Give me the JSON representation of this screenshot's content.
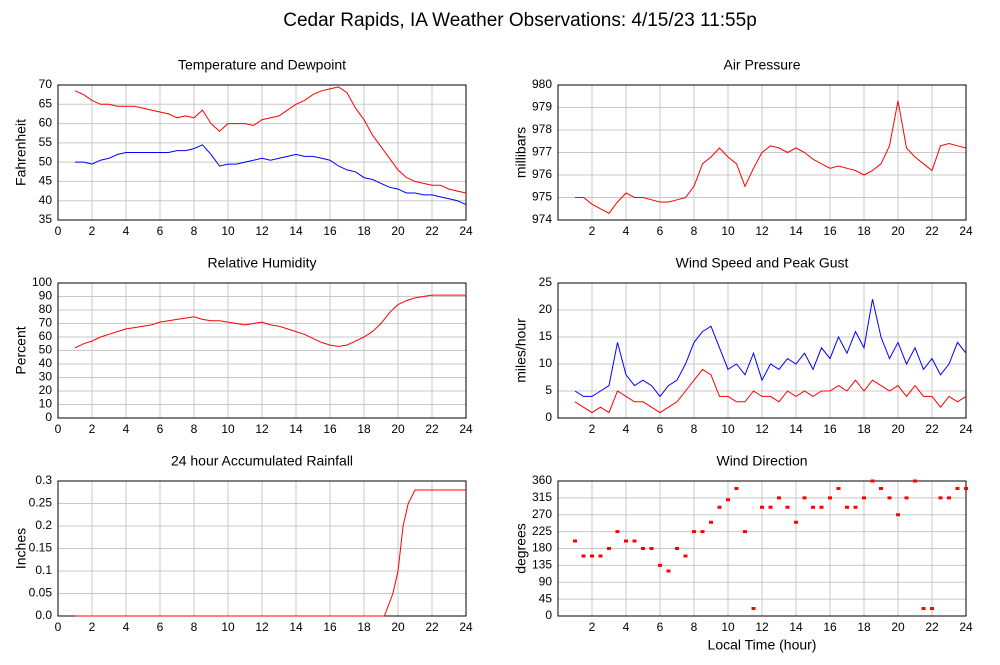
{
  "title": "Cedar Rapids, IA Weather Observations: 4/15/23 11:55p",
  "chart_data": [
    {
      "type": "line",
      "title": "Temperature and Dewpoint",
      "ylabel": "Fahrenheit",
      "xlim": [
        0,
        24
      ],
      "xticks": [
        0,
        2,
        4,
        6,
        8,
        10,
        12,
        14,
        16,
        18,
        20,
        22,
        24
      ],
      "ylim": [
        35,
        70
      ],
      "yticks": [
        35,
        40,
        45,
        50,
        55,
        60,
        65,
        70
      ],
      "grid": true,
      "x": [
        1,
        1.5,
        2,
        2.5,
        3,
        3.5,
        4,
        4.5,
        5,
        5.5,
        6,
        6.5,
        7,
        7.5,
        8,
        8.5,
        9,
        9.5,
        10,
        10.5,
        11,
        11.5,
        12,
        12.5,
        13,
        13.5,
        14,
        14.5,
        15,
        15.5,
        16,
        16.5,
        17,
        17.5,
        18,
        18.5,
        19,
        19.5,
        20,
        20.5,
        21,
        21.5,
        22,
        22.5,
        23,
        23.5,
        24
      ],
      "series": [
        {
          "color": "#ff0000",
          "values": [
            68.5,
            67.5,
            66,
            65,
            65,
            64.5,
            64.5,
            64.5,
            64,
            63.5,
            63,
            62.5,
            61.5,
            62,
            61.5,
            63.5,
            60,
            58,
            60,
            60,
            60,
            59.5,
            61,
            61.5,
            62,
            63.5,
            65,
            66,
            67.5,
            68.5,
            69,
            69.5,
            68,
            64,
            61,
            57,
            54,
            51,
            48,
            46,
            45,
            44.5,
            44,
            44,
            43,
            42.5,
            42
          ]
        },
        {
          "color": "#0000ff",
          "values": [
            50,
            50,
            49.5,
            50.5,
            51,
            52,
            52.5,
            52.5,
            52.5,
            52.5,
            52.5,
            52.5,
            53,
            53,
            53.5,
            54.5,
            52,
            49,
            49.5,
            49.5,
            50,
            50.5,
            51,
            50.5,
            51,
            51.5,
            52,
            51.5,
            51.5,
            51,
            50.5,
            49,
            48,
            47.5,
            46,
            45.5,
            44.5,
            43.5,
            43,
            42,
            42,
            41.5,
            41.5,
            41,
            40.5,
            40,
            39
          ]
        }
      ]
    },
    {
      "type": "line",
      "title": "Air Pressure",
      "ylabel": "millibars",
      "xlim": [
        0,
        24
      ],
      "xticks": [
        2,
        4,
        6,
        8,
        10,
        12,
        14,
        16,
        18,
        20,
        22,
        24
      ],
      "ylim": [
        974,
        980
      ],
      "yticks": [
        974,
        975,
        976,
        977,
        978,
        979,
        980
      ],
      "grid": true,
      "x": [
        1,
        1.5,
        2,
        2.5,
        3,
        3.5,
        4,
        4.5,
        5,
        5.5,
        6,
        6.5,
        7,
        7.5,
        8,
        8.5,
        9,
        9.5,
        10,
        10.5,
        11,
        11.5,
        12,
        12.5,
        13,
        13.5,
        14,
        14.5,
        15,
        15.5,
        16,
        16.5,
        17,
        17.5,
        18,
        18.5,
        19,
        19.5,
        20,
        20.5,
        21,
        21.5,
        22,
        22.5,
        23,
        23.5,
        24
      ],
      "series": [
        {
          "color": "#ff0000",
          "values": [
            975,
            975,
            974.7,
            974.5,
            974.3,
            974.8,
            975.2,
            975,
            975,
            974.9,
            974.8,
            974.8,
            974.9,
            975,
            975.5,
            976.5,
            976.8,
            977.2,
            976.8,
            976.5,
            975.5,
            976.3,
            977,
            977.3,
            977.2,
            977,
            977.2,
            977,
            976.7,
            976.5,
            976.3,
            976.4,
            976.3,
            976.2,
            976,
            976.2,
            976.5,
            977.3,
            979.3,
            977.2,
            976.8,
            976.5,
            976.2,
            977.3,
            977.4,
            977.3,
            977.2
          ]
        }
      ]
    },
    {
      "type": "line",
      "title": "Relative Humidity",
      "ylabel": "Percent",
      "xlim": [
        0,
        24
      ],
      "xticks": [
        0,
        2,
        4,
        6,
        8,
        10,
        12,
        14,
        16,
        18,
        20,
        22,
        24
      ],
      "ylim": [
        0,
        100
      ],
      "yticks": [
        0,
        10,
        20,
        30,
        40,
        50,
        60,
        70,
        80,
        90,
        100
      ],
      "grid": true,
      "x": [
        1,
        1.5,
        2,
        2.5,
        3,
        3.5,
        4,
        4.5,
        5,
        5.5,
        6,
        6.5,
        7,
        7.5,
        8,
        8.5,
        9,
        9.5,
        10,
        10.5,
        11,
        11.5,
        12,
        12.5,
        13,
        13.5,
        14,
        14.5,
        15,
        15.5,
        16,
        16.5,
        17,
        17.5,
        18,
        18.5,
        19,
        19.5,
        20,
        20.5,
        21,
        21.5,
        22,
        22.5,
        23,
        23.5,
        24
      ],
      "series": [
        {
          "color": "#ff0000",
          "values": [
            52,
            55,
            57,
            60,
            62,
            64,
            66,
            67,
            68,
            69,
            71,
            72,
            73,
            74,
            75,
            73,
            72,
            72,
            71,
            70,
            69,
            70,
            71,
            69,
            68,
            66,
            64,
            62,
            59,
            56,
            54,
            53,
            54,
            57,
            60,
            64,
            70,
            78,
            84,
            87,
            89,
            90,
            91,
            91,
            91,
            91,
            91
          ]
        }
      ]
    },
    {
      "type": "line",
      "title": "Wind Speed and Peak Gust",
      "ylabel": "miles/hour",
      "xlim": [
        0,
        24
      ],
      "xticks": [
        2,
        4,
        6,
        8,
        10,
        12,
        14,
        16,
        18,
        20,
        22,
        24
      ],
      "ylim": [
        0,
        25
      ],
      "yticks": [
        0,
        5,
        10,
        15,
        20,
        25
      ],
      "grid": true,
      "x": [
        1,
        1.5,
        2,
        2.5,
        3,
        3.5,
        4,
        4.5,
        5,
        5.5,
        6,
        6.5,
        7,
        7.5,
        8,
        8.5,
        9,
        9.5,
        10,
        10.5,
        11,
        11.5,
        12,
        12.5,
        13,
        13.5,
        14,
        14.5,
        15,
        15.5,
        16,
        16.5,
        17,
        17.5,
        18,
        18.5,
        19,
        19.5,
        20,
        20.5,
        21,
        21.5,
        22,
        22.5,
        23,
        23.5,
        24
      ],
      "series": [
        {
          "color": "#0000ff",
          "values": [
            5,
            4,
            4,
            5,
            6,
            14,
            8,
            6,
            7,
            6,
            4,
            6,
            7,
            10,
            14,
            16,
            17,
            13,
            9,
            10,
            8,
            12,
            7,
            10,
            9,
            11,
            10,
            12,
            9,
            13,
            11,
            15,
            12,
            16,
            13,
            22,
            15,
            11,
            14,
            10,
            13,
            9,
            11,
            8,
            10,
            14,
            12
          ]
        },
        {
          "color": "#ff0000",
          "values": [
            3,
            2,
            1,
            2,
            1,
            5,
            4,
            3,
            3,
            2,
            1,
            2,
            3,
            5,
            7,
            9,
            8,
            4,
            4,
            3,
            3,
            5,
            4,
            4,
            3,
            5,
            4,
            5,
            4,
            5,
            5,
            6,
            5,
            7,
            5,
            7,
            6,
            5,
            6,
            4,
            6,
            4,
            4,
            2,
            4,
            3,
            4
          ]
        }
      ]
    },
    {
      "type": "line",
      "title": "24 hour Accumulated Rainfall",
      "ylabel": "Inches",
      "xlim": [
        0,
        24
      ],
      "xticks": [
        0,
        2,
        4,
        6,
        8,
        10,
        12,
        14,
        16,
        18,
        20,
        22,
        24
      ],
      "ylim": [
        0,
        0.3
      ],
      "yticks": [
        {
          "value": 0,
          "label": "0.0"
        },
        0.05,
        0.1,
        0.15,
        0.2,
        0.25,
        0.3
      ],
      "grid": true,
      "x": [
        1,
        19.2,
        19.4,
        19.7,
        20,
        20.3,
        20.6,
        21,
        21.5,
        24
      ],
      "series": [
        {
          "color": "#ff0000",
          "values": [
            0,
            0,
            0.02,
            0.05,
            0.1,
            0.2,
            0.25,
            0.28,
            0.28,
            0.28
          ]
        }
      ]
    },
    {
      "type": "scatter",
      "title": "Wind Direction",
      "ylabel": "degrees",
      "xlabel": "Local Time (hour)",
      "xlim": [
        0,
        24
      ],
      "xticks": [
        2,
        4,
        6,
        8,
        10,
        12,
        14,
        16,
        18,
        20,
        22,
        24
      ],
      "ylim": [
        0,
        360
      ],
      "yticks": [
        0,
        45,
        90,
        135,
        180,
        225,
        270,
        315,
        360
      ],
      "grid": true,
      "x": [
        1,
        1.5,
        2,
        2.5,
        3,
        3.5,
        4,
        4.5,
        5,
        5.5,
        6,
        6.5,
        7,
        7.5,
        8,
        8.5,
        9,
        9.5,
        10,
        10.5,
        11,
        11.5,
        12,
        12.5,
        13,
        13.5,
        14,
        14.5,
        15,
        15.5,
        16,
        16.5,
        17,
        17.5,
        18,
        18.5,
        19,
        19.5,
        20,
        20.5,
        21,
        21.5,
        22,
        22.5,
        23,
        23.5,
        24
      ],
      "series": [
        {
          "color": "#ff0000",
          "values": [
            200,
            160,
            160,
            160,
            180,
            225,
            200,
            200,
            180,
            180,
            135,
            120,
            180,
            160,
            225,
            225,
            250,
            290,
            310,
            340,
            225,
            20,
            290,
            290,
            315,
            290,
            250,
            315,
            290,
            290,
            315,
            340,
            290,
            290,
            315,
            360,
            340,
            315,
            270,
            315,
            360,
            20,
            20,
            315,
            315,
            340,
            340
          ]
        }
      ]
    }
  ]
}
